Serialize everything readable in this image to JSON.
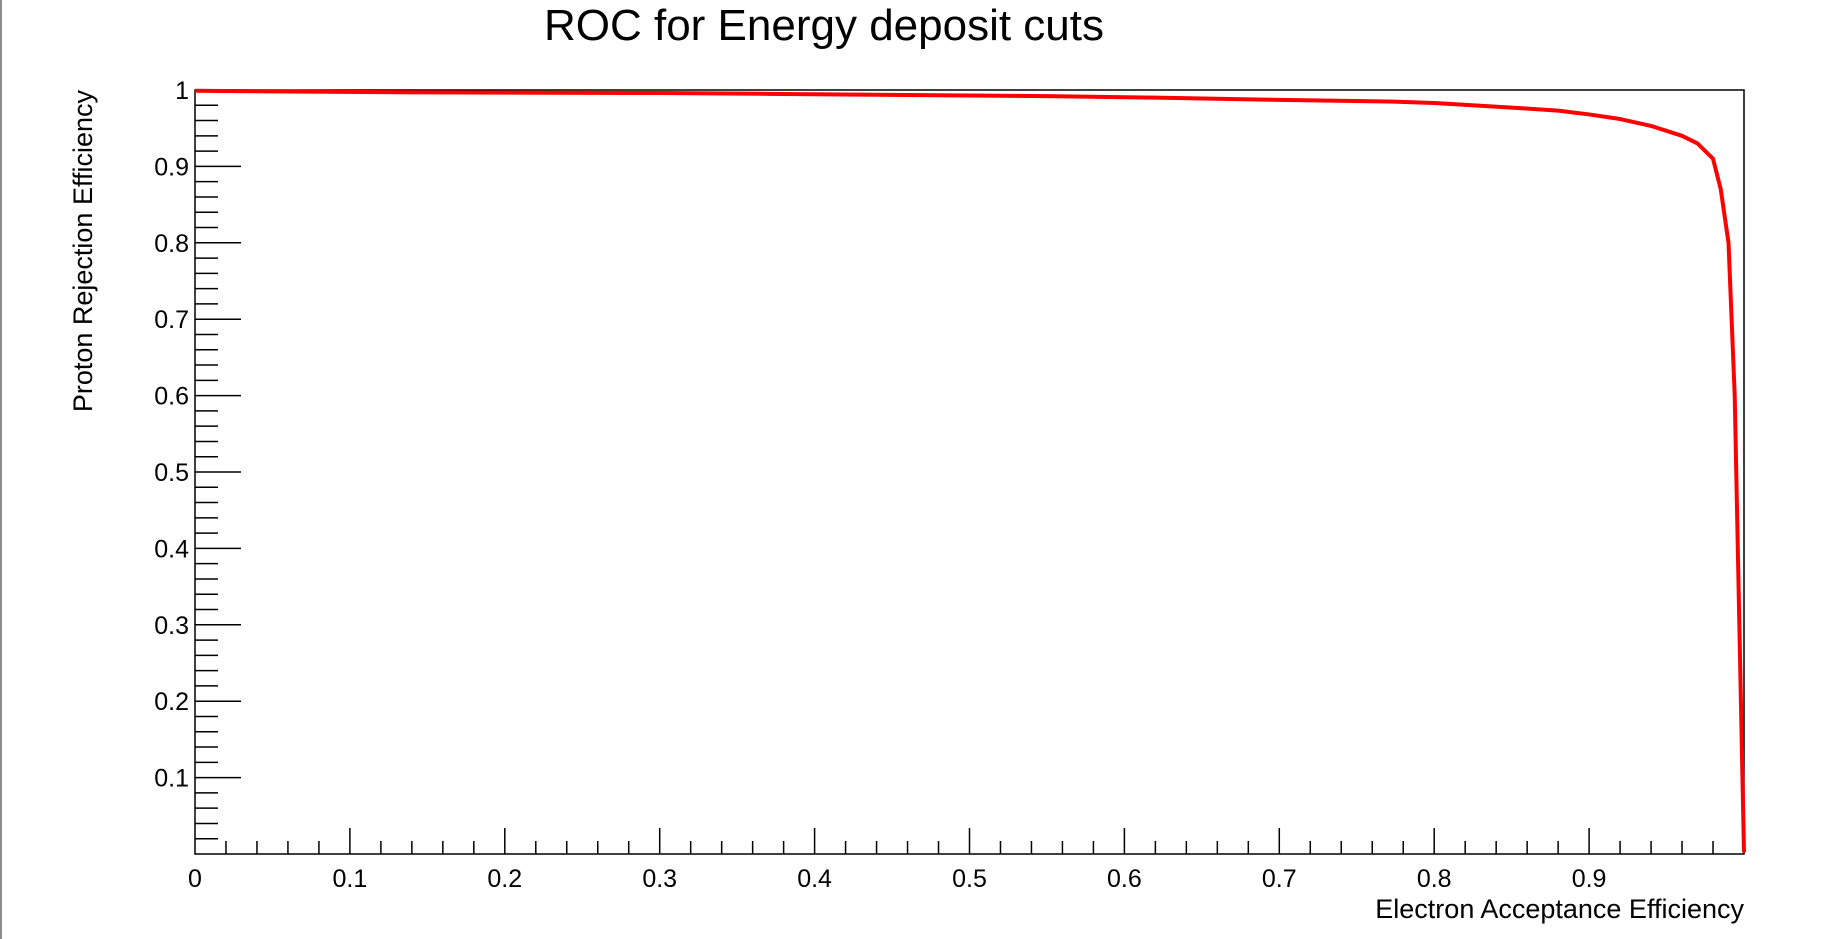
{
  "chart_data": {
    "type": "line",
    "title": "ROC for Energy deposit cuts",
    "xlabel": "Electron Acceptance Efficiency",
    "ylabel": "Proton Rejection Efficiency",
    "xlim": [
      0,
      1.0
    ],
    "ylim": [
      0,
      1.0
    ],
    "x_ticks": [
      "0",
      "0.1",
      "0.2",
      "0.3",
      "0.4",
      "0.5",
      "0.6",
      "0.7",
      "0.8",
      "0.9"
    ],
    "x_tick_values": [
      0,
      0.1,
      0.2,
      0.3,
      0.4,
      0.5,
      0.6,
      0.7,
      0.8,
      0.9
    ],
    "y_ticks": [
      "0.1",
      "0.2",
      "0.3",
      "0.4",
      "0.5",
      "0.6",
      "0.7",
      "0.8",
      "0.9",
      "1"
    ],
    "y_tick_values": [
      0.1,
      0.2,
      0.3,
      0.4,
      0.5,
      0.6,
      0.7,
      0.8,
      0.9,
      1.0
    ],
    "grid": false,
    "series": [
      {
        "color": "#ff0000",
        "x": [
          0.0,
          0.13,
          0.3,
          0.37,
          0.55,
          0.62,
          0.7,
          0.77,
          0.8,
          0.85,
          0.88,
          0.9,
          0.92,
          0.94,
          0.96,
          0.97,
          0.98,
          0.985,
          0.99,
          0.992,
          0.994,
          0.995,
          0.996,
          0.997,
          0.998,
          0.999,
          1.0
        ],
        "y": [
          0.999,
          0.997,
          0.996,
          0.995,
          0.992,
          0.99,
          0.987,
          0.985,
          0.983,
          0.977,
          0.973,
          0.968,
          0.962,
          0.953,
          0.94,
          0.93,
          0.91,
          0.87,
          0.8,
          0.7,
          0.6,
          0.5,
          0.4,
          0.3,
          0.2,
          0.1,
          0.002
        ]
      }
    ]
  }
}
